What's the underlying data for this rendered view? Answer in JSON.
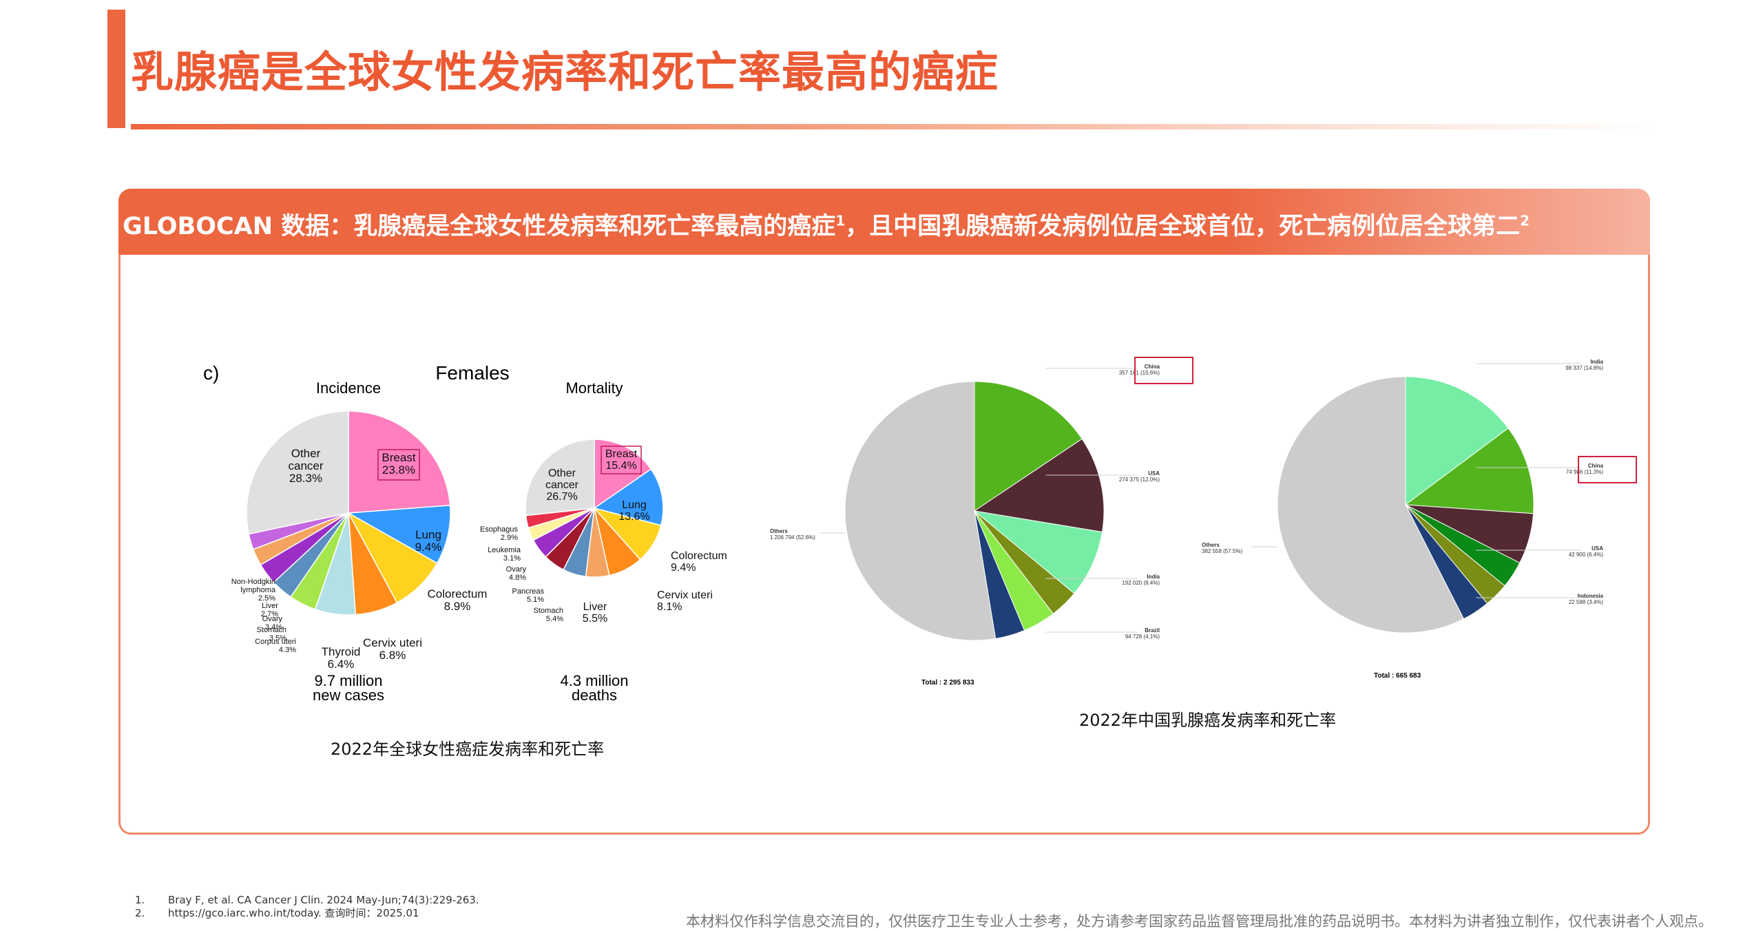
{
  "page": {
    "title": "乳腺癌是全球女性发病率和死亡率最高的癌症",
    "header": "GLOBOCAN 数据：乳腺癌是全球女性发病率和死亡率最高的癌症",
    "header_sup1": "1",
    "header_mid": "，且中国乳腺癌新发病例位居全球首位，死亡病例位居全球第二",
    "header_sup2": "2"
  },
  "left_figure": {
    "panel_label": "c)",
    "heading": "Females",
    "caption": "2022年全球女性癌症发病率和死亡率",
    "incidence": {
      "title": "Incidence",
      "total_line1": "9.7 million",
      "total_line2": "new cases"
    },
    "mortality": {
      "title": "Mortality",
      "total_line1": "4.3 million",
      "total_line2": "deaths"
    }
  },
  "right_figure": {
    "caption": "2022年中国乳腺癌发病率和死亡率",
    "incidence_total": "Total : 2 295 833",
    "mortality_total": "Total : 665 683"
  },
  "footnotes": [
    {
      "num": "1.",
      "text": "Bray F, et al. CA Cancer J Clin. 2024 May-Jun;74(3):229-263."
    },
    {
      "num": "2.",
      "text": "https://gco.iarc.who.int/today. 查询时间：2025.01"
    }
  ],
  "disclaimer": "本材料仅作科学信息交流目的，仅供医疗卫生专业人士参考，处方请参考国家药品监督管理局批准的药品说明书。本材料为讲者独立制作，仅代表讲者个人观点。",
  "chart_data": [
    {
      "type": "pie",
      "title": "Incidence",
      "slices": [
        {
          "name": "Breast",
          "value": 23.8,
          "label": "23.8%",
          "color": "#ff7fbf"
        },
        {
          "name": "Lung",
          "value": 9.4,
          "label": "9.4%",
          "color": "#3399ff"
        },
        {
          "name": "Colorectum",
          "value": 8.9,
          "label": "8.9%",
          "color": "#ffd21f"
        },
        {
          "name": "Cervix uteri",
          "value": 6.8,
          "label": "6.8%",
          "color": "#ff8c1a"
        },
        {
          "name": "Thyroid",
          "value": 6.4,
          "label": "6.4%",
          "color": "#b3e0e6"
        },
        {
          "name": "Corpus uteri",
          "value": 4.3,
          "label": "4.3%",
          "color": "#a6e64d"
        },
        {
          "name": "Stomach",
          "value": 3.5,
          "label": "3.5%",
          "color": "#5b8fbf"
        },
        {
          "name": "Ovary",
          "value": 3.4,
          "label": "3.4%",
          "color": "#9a2ec7"
        },
        {
          "name": "Liver",
          "value": 2.7,
          "label": "2.7%",
          "color": "#f4a460"
        },
        {
          "name": "Non-Hodgkin lymphoma",
          "value": 2.5,
          "label": "2.5%",
          "color": "#c566e0"
        },
        {
          "name": "Other cancer",
          "value": 28.3,
          "label": "28.3%",
          "color": "#e0e0e0"
        }
      ]
    },
    {
      "type": "pie",
      "title": "Mortality",
      "slices": [
        {
          "name": "Breast",
          "value": 15.4,
          "label": "15.4%",
          "color": "#ff7fbf"
        },
        {
          "name": "Lung",
          "value": 13.6,
          "label": "13.6%",
          "color": "#3399ff"
        },
        {
          "name": "Colorectum",
          "value": 9.4,
          "label": "9.4%",
          "color": "#ffd21f"
        },
        {
          "name": "Cervix uteri",
          "value": 8.1,
          "label": "8.1%",
          "color": "#ff8c1a"
        },
        {
          "name": "Liver",
          "value": 5.5,
          "label": "5.5%",
          "color": "#f4a460"
        },
        {
          "name": "Stomach",
          "value": 5.4,
          "label": "5.4%",
          "color": "#5b8fbf"
        },
        {
          "name": "Pancreas",
          "value": 5.1,
          "label": "5.1%",
          "color": "#a0182e"
        },
        {
          "name": "Ovary",
          "value": 4.8,
          "label": "4.8%",
          "color": "#9a2ec7"
        },
        {
          "name": "Leukemia",
          "value": 3.1,
          "label": "3.1%",
          "color": "#fff3a0"
        },
        {
          "name": "Esophagus",
          "value": 2.9,
          "label": "2.9%",
          "color": "#e8304a"
        },
        {
          "name": "Other cancer",
          "value": 26.7,
          "label": "26.7%",
          "color": "#e0e0e0"
        }
      ]
    },
    {
      "type": "pie",
      "title": "",
      "total": "Total : 2 295 833",
      "slices": [
        {
          "name": "China",
          "value": 15.6,
          "label": "357 161 (15.6%)",
          "color": "#54b41e"
        },
        {
          "name": "USA",
          "value": 12.0,
          "label": "274 375 (12.0%)",
          "color": "#532a32"
        },
        {
          "name": "India",
          "value": 8.4,
          "label": "192 020 (8.4%)",
          "color": "#76eda4"
        },
        {
          "name": "",
          "value": 3.6,
          "label": "",
          "color": "#7c8d16"
        },
        {
          "name": "Brazil",
          "value": 4.1,
          "label": "94 728 (4.1%)",
          "color": "#8bea48"
        },
        {
          "name": "",
          "value": 3.7,
          "label": "",
          "color": "#1e3f78"
        },
        {
          "name": "Others",
          "value": 52.6,
          "label": "1 206 794 (52.6%)",
          "color": "#cccccc"
        }
      ]
    },
    {
      "type": "pie",
      "title": "",
      "total": "Total : 665 683",
      "slices": [
        {
          "name": "India",
          "value": 14.8,
          "label": "98 337 (14.8%)",
          "color": "#76eda4"
        },
        {
          "name": "China",
          "value": 11.3,
          "label": "74 986 (11.3%)",
          "color": "#54b41e"
        },
        {
          "name": "USA",
          "value": 6.4,
          "label": "42 900 (6.4%)",
          "color": "#532a32"
        },
        {
          "name": "Indonesia",
          "value": 3.4,
          "label": "22 598 (3.4%)",
          "color": "#0a8a16"
        },
        {
          "name": "",
          "value": 3.1,
          "label": "",
          "color": "#7c8d16"
        },
        {
          "name": "",
          "value": 3.5,
          "label": "",
          "color": "#1e3f78"
        },
        {
          "name": "Others",
          "value": 57.5,
          "label": "382 558 (57.5%)",
          "color": "#cccccc"
        }
      ]
    }
  ]
}
